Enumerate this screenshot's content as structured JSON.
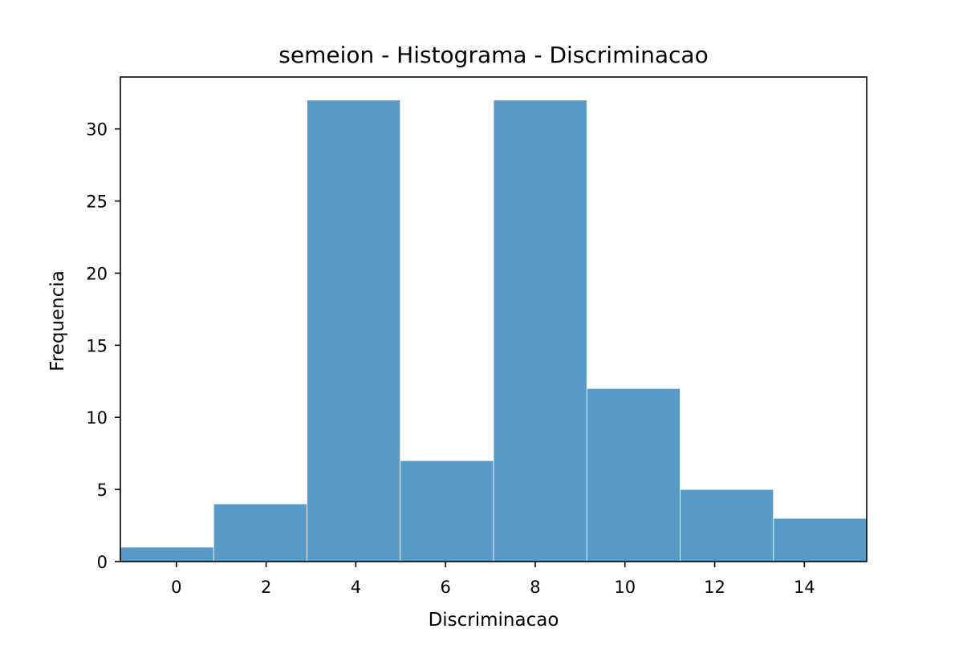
{
  "chart_data": {
    "type": "bar",
    "title": "semeion - Histograma - Discriminacao",
    "xlabel": "Discriminacao",
    "ylabel": "Frequencia",
    "bins": [
      {
        "x0": -1.25,
        "x1": 0.83,
        "count": 1
      },
      {
        "x0": 0.83,
        "x1": 2.91,
        "count": 4
      },
      {
        "x0": 2.91,
        "x1": 4.99,
        "count": 32
      },
      {
        "x0": 4.99,
        "x1": 7.07,
        "count": 7
      },
      {
        "x0": 7.07,
        "x1": 9.15,
        "count": 32
      },
      {
        "x0": 9.15,
        "x1": 11.23,
        "count": 12
      },
      {
        "x0": 11.23,
        "x1": 13.31,
        "count": 5
      },
      {
        "x0": 13.31,
        "x1": 15.39,
        "count": 3
      }
    ],
    "xlim": [
      -1.25,
      15.39
    ],
    "ylim": [
      0,
      33.6
    ],
    "xticks": [
      0,
      2,
      4,
      6,
      8,
      10,
      12,
      14
    ],
    "yticks": [
      0,
      5,
      10,
      15,
      20,
      25,
      30
    ],
    "bar_color": "#5799c7",
    "grid": false
  }
}
